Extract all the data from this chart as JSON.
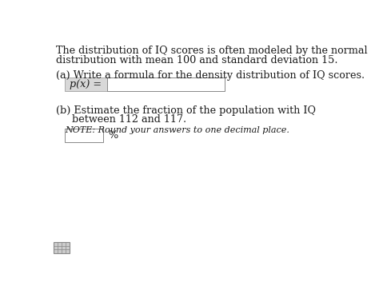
{
  "bg_color": "#ffffff",
  "text_color": "#1a1a1a",
  "gray_text": "#555555",
  "paragraph1_line1": "The distribution of IQ scores is often modeled by the normal",
  "paragraph1_line2": "distribution with mean 100 and standard deviation 15.",
  "part_a_label": "(a) Write a formula for the density distribution of IQ scores.",
  "part_a_prefix": "p(x) =",
  "part_b_line1": "(b) Estimate the fraction of the population with IQ",
  "part_b_line2": "     between 112 and 117.",
  "note_text": "NOTE: Round your answers to one decimal place.",
  "percent_label": "%",
  "font_size_main": 9.2,
  "font_size_note": 8.0,
  "font_size_small": 7.5
}
